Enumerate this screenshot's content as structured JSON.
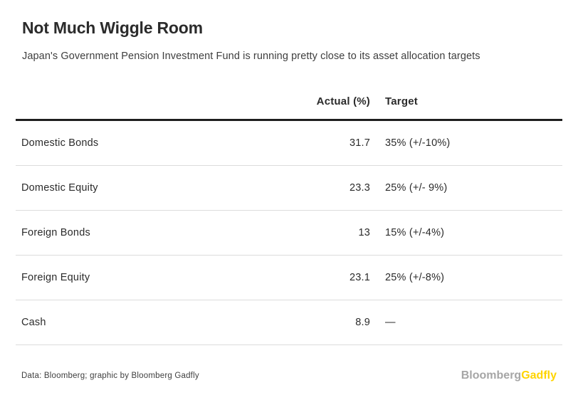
{
  "title": "Not Much Wiggle Room",
  "subtitle": "Japan's Government Pension Investment Fund is running pretty close to its asset allocation targets",
  "chart_data": {
    "type": "table",
    "title": "Not Much Wiggle Room",
    "subtitle": "Japan's Government Pension Investment Fund is running pretty close to its asset allocation targets",
    "columns": {
      "actual": "Actual (%)",
      "target": "Target"
    },
    "rows": [
      {
        "label": "Domestic Bonds",
        "actual": "31.7",
        "target": "35% (+/-10%)"
      },
      {
        "label": "Domestic Equity",
        "actual": "23.3",
        "target": "25% (+/- 9%)"
      },
      {
        "label": "Foreign Bonds",
        "actual": "13",
        "target": "15% (+/-4%)"
      },
      {
        "label": "Foreign Equity",
        "actual": "23.1",
        "target": "25% (+/-8%)"
      },
      {
        "label": "Cash",
        "actual": "8.9",
        "target": "—"
      }
    ],
    "actual_values_numeric": [
      31.7,
      23.3,
      13,
      23.1,
      8.9
    ],
    "layout": {
      "grid": "horizontal-row-dividers",
      "header_rule": "thick-black"
    }
  },
  "footer": {
    "source": "Data: Bloomberg; graphic by Bloomberg Gadfly",
    "logo_bloomberg": "Bloomberg",
    "logo_gadfly": "Gadfly"
  },
  "colors": {
    "background": "#ffffff",
    "text_dark": "#2b2b2b",
    "text_gray": "#3e3e3e",
    "rule_dark": "#1f1f1f",
    "rule_light": "#dcdcdc",
    "logo_gray": "#a6a6a6",
    "logo_yellow": "#ffd400"
  }
}
